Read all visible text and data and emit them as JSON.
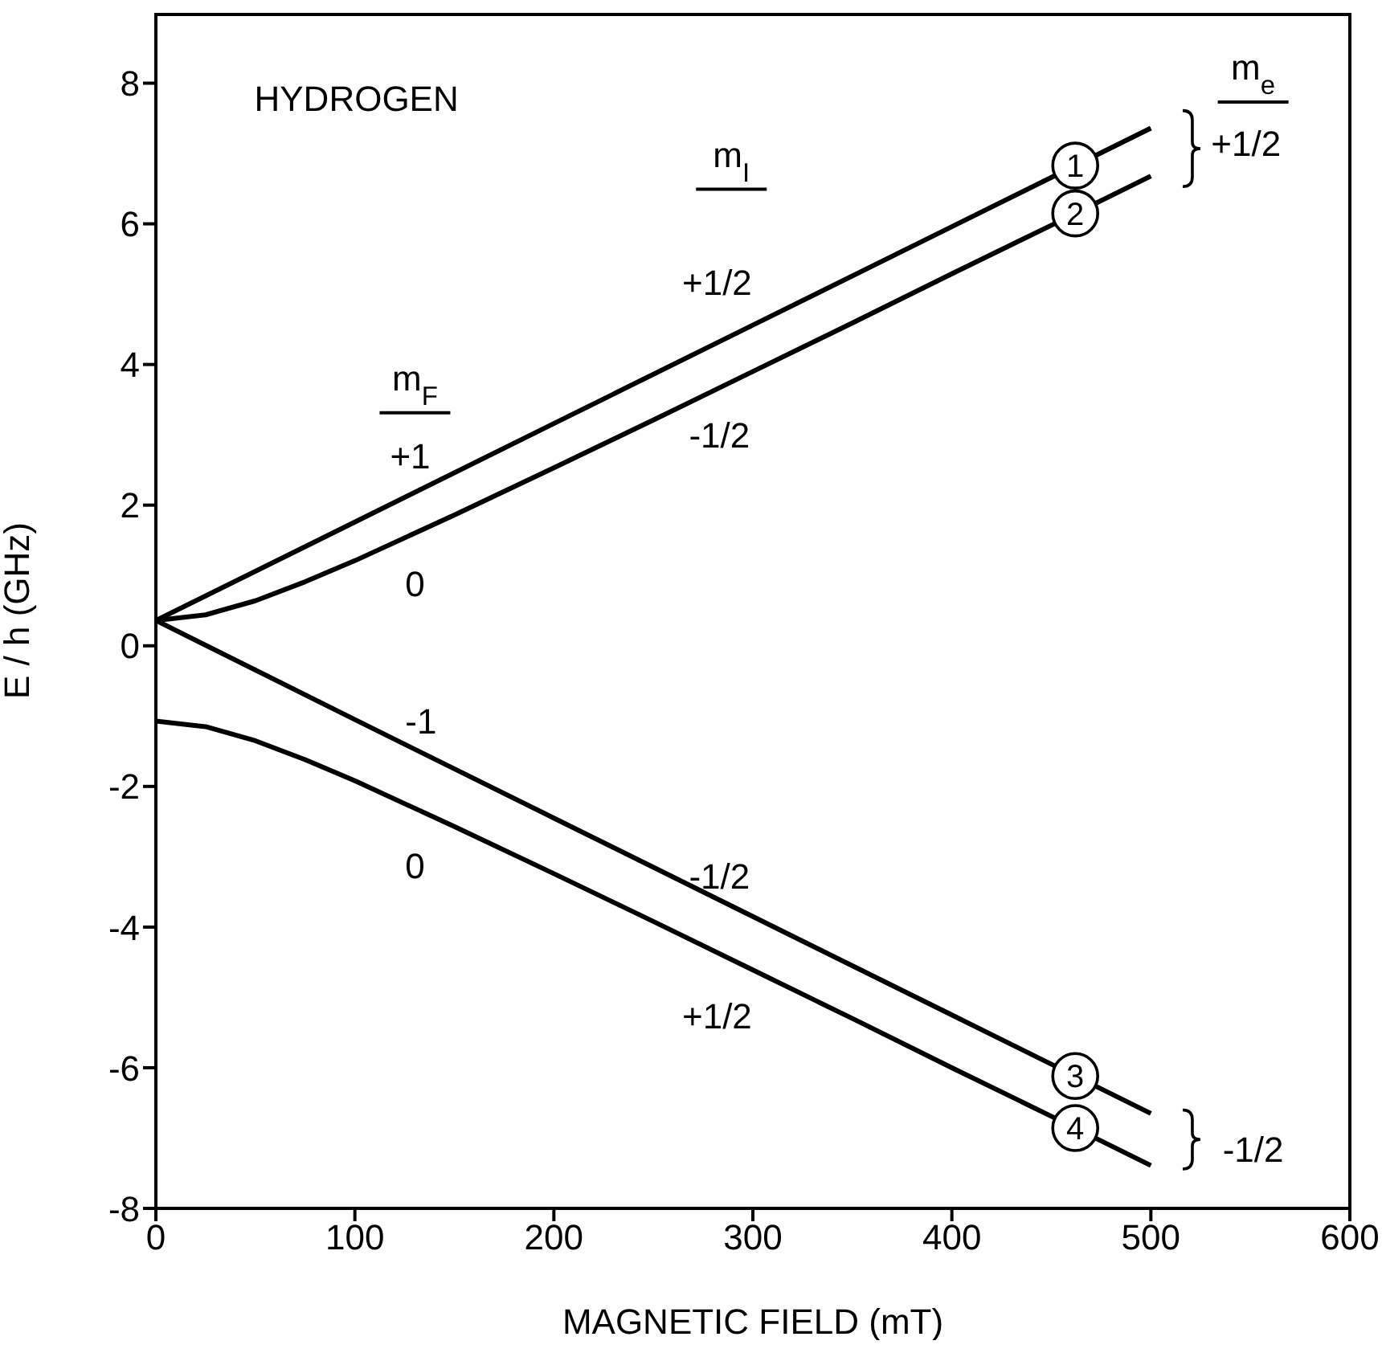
{
  "chart_data": {
    "type": "line",
    "xlabel": "MAGNETIC FIELD  (mT)",
    "ylabel": "E / h  (GHz)",
    "xlim": [
      0,
      600
    ],
    "xticks": [
      0,
      100,
      200,
      300,
      400,
      500,
      600
    ],
    "ylim": [
      -8,
      9
    ],
    "yticks": [
      -8,
      -6,
      -4,
      -2,
      0,
      2,
      4,
      6,
      8
    ],
    "grid": false,
    "legend": "right",
    "marker": "none",
    "line_style": "solid",
    "series": [
      {
        "name": "1",
        "color": "#000000",
        "x": [
          0,
          100,
          200,
          300,
          400,
          500
        ],
        "values": [
          0.36,
          1.76,
          3.16,
          4.56,
          5.96,
          7.36
        ]
      },
      {
        "name": "2",
        "color": "#000000",
        "x": [
          0,
          25,
          50,
          75,
          100,
          150,
          200,
          250,
          300,
          350,
          400,
          450,
          500
        ],
        "values": [
          0.36,
          0.44,
          0.64,
          0.91,
          1.21,
          1.86,
          2.53,
          3.21,
          3.9,
          4.59,
          5.29,
          5.98,
          6.68
        ]
      },
      {
        "name": "3",
        "color": "#000000",
        "x": [
          0,
          100,
          200,
          300,
          400,
          500
        ],
        "values": [
          0.36,
          -1.05,
          -2.45,
          -3.85,
          -5.25,
          -6.65
        ]
      },
      {
        "name": "4",
        "color": "#000000",
        "x": [
          0,
          25,
          50,
          75,
          100,
          150,
          200,
          250,
          300,
          350,
          400,
          450,
          500
        ],
        "values": [
          -1.07,
          -1.15,
          -1.35,
          -1.62,
          -1.92,
          -2.57,
          -3.24,
          -3.92,
          -4.61,
          -5.3,
          -6.0,
          -6.69,
          -7.39
        ]
      }
    ],
    "annotations": [
      "HYDROGEN",
      "m$_{F}$",
      "+1",
      "0",
      "-1",
      "0",
      "m$_{I}$",
      "+1/2",
      "-1/2",
      "-1/2",
      "+1/2",
      "m$_{e}$",
      "+1/2",
      "-1/2"
    ]
  }
}
